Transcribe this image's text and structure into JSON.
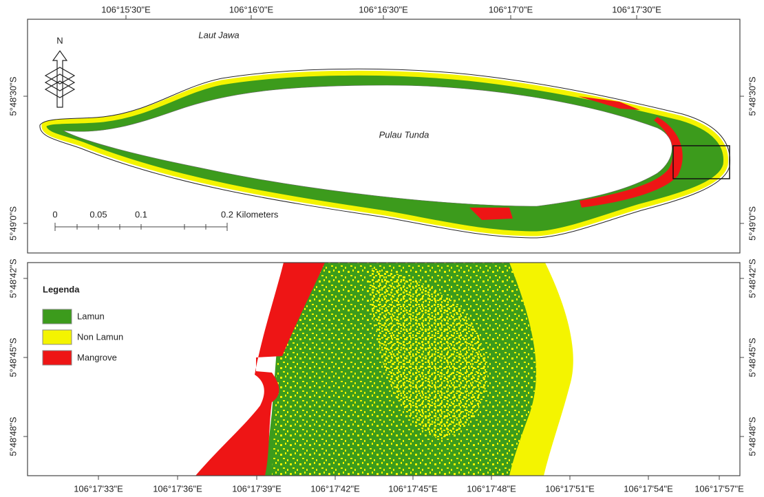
{
  "map": {
    "top": {
      "lon_labels": [
        "106°15'30\"E",
        "106°16'0\"E",
        "106°16'30\"E",
        "106°17'0\"E",
        "106°17'30\"E"
      ],
      "lat_labels": [
        "5°48'30\"S",
        "5°49'0\"S"
      ],
      "sea_label": "Laut Jawa",
      "island_label": "Pulau Tunda",
      "north": "N",
      "scale": {
        "ticks": [
          "0",
          "0.05",
          "0.1",
          "0.2"
        ],
        "unit": "Kilometers"
      }
    },
    "bottom": {
      "lon_labels": [
        "106°17'33\"E",
        "106°17'36\"E",
        "106°17'39\"E",
        "106°17'42\"E",
        "106°17'45\"E",
        "106°17'48\"E",
        "106°17'51\"E",
        "106°17'54\"E",
        "106°17'57\"E"
      ],
      "lat_labels": [
        "5°48'42\"S",
        "5°48'45\"S",
        "5°48'48\"S"
      ]
    },
    "legend": {
      "title": "Legenda",
      "items": [
        {
          "label": "Lamun",
          "color": "#3c9b1c"
        },
        {
          "label": "Non Lamun",
          "color": "#f4f400"
        },
        {
          "label": "Mangrove",
          "color": "#ee1515"
        }
      ]
    }
  }
}
